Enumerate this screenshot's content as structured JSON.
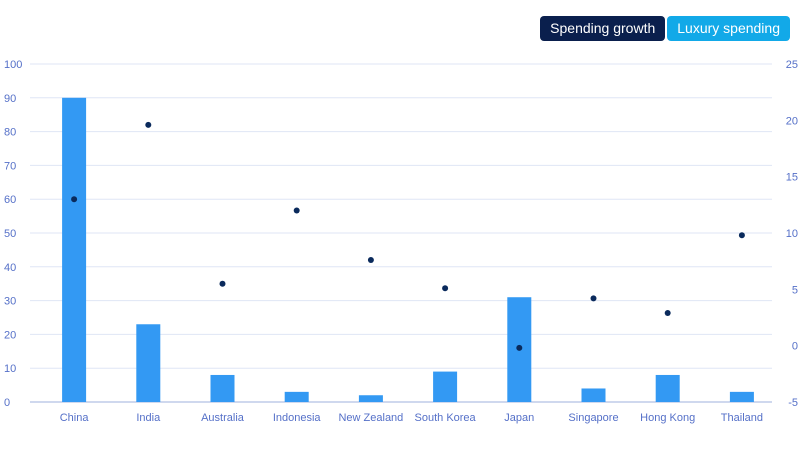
{
  "legend": {
    "growth_label": "Spending growth",
    "growth_color": "#0a1f4d",
    "luxury_label": "Luxury spending",
    "luxury_color": "#12a9e8"
  },
  "chart_data": {
    "type": "bar",
    "categories": [
      "China",
      "India",
      "Australia",
      "Indonesia",
      "New Zealand",
      "South Korea",
      "Japan",
      "Singapore",
      "Hong Kong",
      "Thailand"
    ],
    "series": [
      {
        "name": "Luxury spending",
        "type": "bar",
        "axis": "left",
        "color": "#3399f3",
        "values": [
          90,
          23,
          8,
          3,
          2,
          9,
          31,
          4,
          8,
          3
        ]
      },
      {
        "name": "Spending growth",
        "type": "scatter",
        "axis": "right",
        "color": "#0a2a5c",
        "values": [
          13,
          19.6,
          5.5,
          12,
          7.6,
          5.1,
          -0.2,
          4.2,
          2.9,
          9.8
        ]
      }
    ],
    "y_left": {
      "min": 0,
      "max": 100,
      "ticks": [
        0,
        10,
        20,
        30,
        40,
        50,
        60,
        70,
        80,
        90,
        100
      ]
    },
    "y_right": {
      "min": -5,
      "max": 25,
      "ticks": [
        -5,
        0,
        5,
        10,
        15,
        20,
        25
      ]
    },
    "grid": true,
    "legend_position": "top-right",
    "axis_color": "#5570c8",
    "grid_color": "#dfe6f5"
  }
}
